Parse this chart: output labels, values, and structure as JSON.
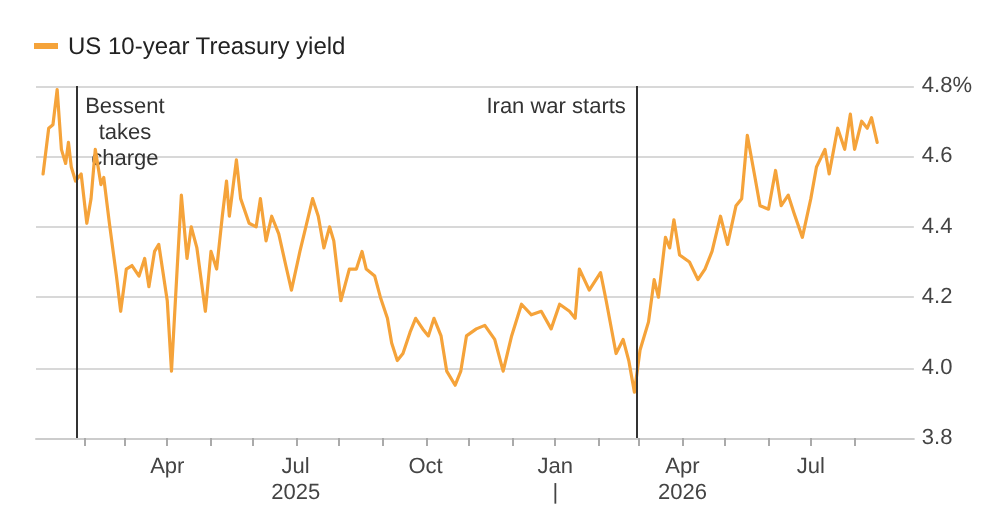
{
  "chart_data": {
    "type": "line",
    "legend": "top left",
    "grid": "y",
    "marker": "none",
    "line_style": "solid",
    "xlim": [
      "2024-12-29",
      "2026-09-12"
    ],
    "ylim": [
      3.8,
      4.8
    ],
    "yticks": [
      {
        "value": 3.8,
        "label": "3.8"
      },
      {
        "value": 4.0,
        "label": "4.0"
      },
      {
        "value": 4.2,
        "label": "4.2"
      },
      {
        "value": 4.4,
        "label": "4.4"
      },
      {
        "value": 4.6,
        "label": "4.6"
      },
      {
        "value": 4.8,
        "label": "4.8%"
      }
    ],
    "xticks": [
      {
        "value": "2025-02-01",
        "label": null
      },
      {
        "value": "2025-03-01",
        "label": null
      },
      {
        "value": "2025-04-01",
        "label": "Apr"
      },
      {
        "value": "2025-05-01",
        "label": null
      },
      {
        "value": "2025-06-01",
        "label": null
      },
      {
        "value": "2025-07-01",
        "label": "Jul\n2025"
      },
      {
        "value": "2025-08-01",
        "label": null
      },
      {
        "value": "2025-09-01",
        "label": null
      },
      {
        "value": "2025-10-01",
        "label": "Oct"
      },
      {
        "value": "2025-11-01",
        "label": null
      },
      {
        "value": "2025-12-01",
        "label": null
      },
      {
        "value": "2026-01-01",
        "label": "Jan\n|"
      },
      {
        "value": "2026-02-01",
        "label": null
      },
      {
        "value": "2026-03-01",
        "label": null
      },
      {
        "value": "2026-04-01",
        "label": "Apr\n2026"
      },
      {
        "value": "2026-05-01",
        "label": null
      },
      {
        "value": "2026-06-01",
        "label": null
      },
      {
        "value": "2026-07-01",
        "label": "Jul"
      },
      {
        "value": "2026-08-01",
        "label": null
      }
    ],
    "ref_lines": [
      {
        "axis": "x",
        "value": "2025-01-27",
        "label": "Bessent\ntakes\ncharge",
        "color": "#333333"
      },
      {
        "axis": "x",
        "value": "2026-02-27",
        "label": "Iran war starts",
        "color": "#333333"
      }
    ],
    "series": [
      {
        "name": "US 10-year Treasury yield",
        "color": "#f5a33a",
        "x": [
          "2025-01-03",
          "2025-01-07",
          "2025-01-10",
          "2025-01-13",
          "2025-01-14",
          "2025-01-16",
          "2025-01-19",
          "2025-01-21",
          "2025-01-23",
          "2025-01-26",
          "2025-01-30",
          "2025-02-03",
          "2025-02-06",
          "2025-02-09",
          "2025-02-13",
          "2025-02-15",
          "2025-02-19",
          "2025-02-24",
          "2025-02-27",
          "2025-03-03",
          "2025-03-07",
          "2025-03-12",
          "2025-03-16",
          "2025-03-19",
          "2025-03-23",
          "2025-03-26",
          "2025-04-01",
          "2025-04-04",
          "2025-04-08",
          "2025-04-11",
          "2025-04-15",
          "2025-04-18",
          "2025-04-22",
          "2025-04-28",
          "2025-05-02",
          "2025-05-06",
          "2025-05-10",
          "2025-05-13",
          "2025-05-15",
          "2025-05-20",
          "2025-05-23",
          "2025-05-29",
          "2025-06-03",
          "2025-06-06",
          "2025-06-10",
          "2025-06-14",
          "2025-06-19",
          "2025-06-24",
          "2025-06-28",
          "2025-07-04",
          "2025-07-07",
          "2025-07-13",
          "2025-07-17",
          "2025-07-21",
          "2025-07-25",
          "2025-07-28",
          "2025-08-02",
          "2025-08-08",
          "2025-08-13",
          "2025-08-17",
          "2025-08-20",
          "2025-08-26",
          "2025-08-30",
          "2025-09-04",
          "2025-09-07",
          "2025-09-11",
          "2025-09-15",
          "2025-09-20",
          "2025-09-24",
          "2025-09-29",
          "2025-10-03",
          "2025-10-07",
          "2025-10-12",
          "2025-10-16",
          "2025-10-22",
          "2025-10-26",
          "2025-10-30",
          "2025-11-06",
          "2025-11-12",
          "2025-11-19",
          "2025-11-25",
          "2025-12-01",
          "2025-12-08",
          "2025-12-15",
          "2025-12-22",
          "2025-12-29",
          "2026-01-04",
          "2026-01-11",
          "2026-01-15",
          "2026-01-18",
          "2026-01-25",
          "2026-02-02",
          "2026-02-06",
          "2026-02-13",
          "2026-02-18",
          "2026-02-22",
          "2026-02-26",
          "2026-03-02",
          "2026-03-08",
          "2026-03-12",
          "2026-03-15",
          "2026-03-20",
          "2026-03-23",
          "2026-03-26",
          "2026-03-30",
          "2026-04-06",
          "2026-04-12",
          "2026-04-17",
          "2026-04-22",
          "2026-04-28",
          "2026-05-03",
          "2026-05-09",
          "2026-05-13",
          "2026-05-17",
          "2026-05-22",
          "2026-05-26",
          "2026-06-01",
          "2026-06-06",
          "2026-06-10",
          "2026-06-15",
          "2026-06-19",
          "2026-06-25",
          "2026-07-01",
          "2026-07-05",
          "2026-07-11",
          "2026-07-14",
          "2026-07-20",
          "2026-07-25",
          "2026-07-29",
          "2026-08-01",
          "2026-08-06",
          "2026-08-10",
          "2026-08-13",
          "2026-08-17"
        ],
        "values": [
          4.55,
          4.68,
          4.69,
          4.79,
          4.79,
          4.62,
          4.58,
          4.64,
          4.57,
          4.53,
          4.55,
          4.41,
          4.48,
          4.62,
          4.52,
          4.54,
          4.41,
          4.26,
          4.16,
          4.28,
          4.29,
          4.26,
          4.31,
          4.23,
          4.33,
          4.35,
          4.19,
          3.99,
          4.28,
          4.49,
          4.31,
          4.4,
          4.34,
          4.16,
          4.33,
          4.28,
          4.43,
          4.53,
          4.43,
          4.59,
          4.48,
          4.41,
          4.4,
          4.48,
          4.36,
          4.43,
          4.38,
          4.29,
          4.22,
          4.33,
          4.38,
          4.48,
          4.43,
          4.34,
          4.4,
          4.36,
          4.19,
          4.28,
          4.28,
          4.33,
          4.28,
          4.26,
          4.2,
          4.14,
          4.07,
          4.02,
          4.04,
          4.1,
          4.14,
          4.11,
          4.09,
          4.14,
          4.09,
          3.99,
          3.95,
          3.99,
          4.09,
          4.11,
          4.12,
          4.08,
          3.99,
          4.09,
          4.18,
          4.15,
          4.16,
          4.11,
          4.18,
          4.16,
          4.14,
          4.28,
          4.22,
          4.27,
          4.19,
          4.04,
          4.08,
          4.02,
          3.93,
          4.05,
          4.13,
          4.25,
          4.2,
          4.37,
          4.34,
          4.42,
          4.32,
          4.3,
          4.25,
          4.28,
          4.33,
          4.43,
          4.35,
          4.46,
          4.48,
          4.66,
          4.55,
          4.46,
          4.45,
          4.56,
          4.46,
          4.49,
          4.44,
          4.37,
          4.48,
          4.57,
          4.62,
          4.55,
          4.68,
          4.62,
          4.72,
          4.62,
          4.7,
          4.68,
          4.71,
          4.64
        ]
      }
    ]
  }
}
